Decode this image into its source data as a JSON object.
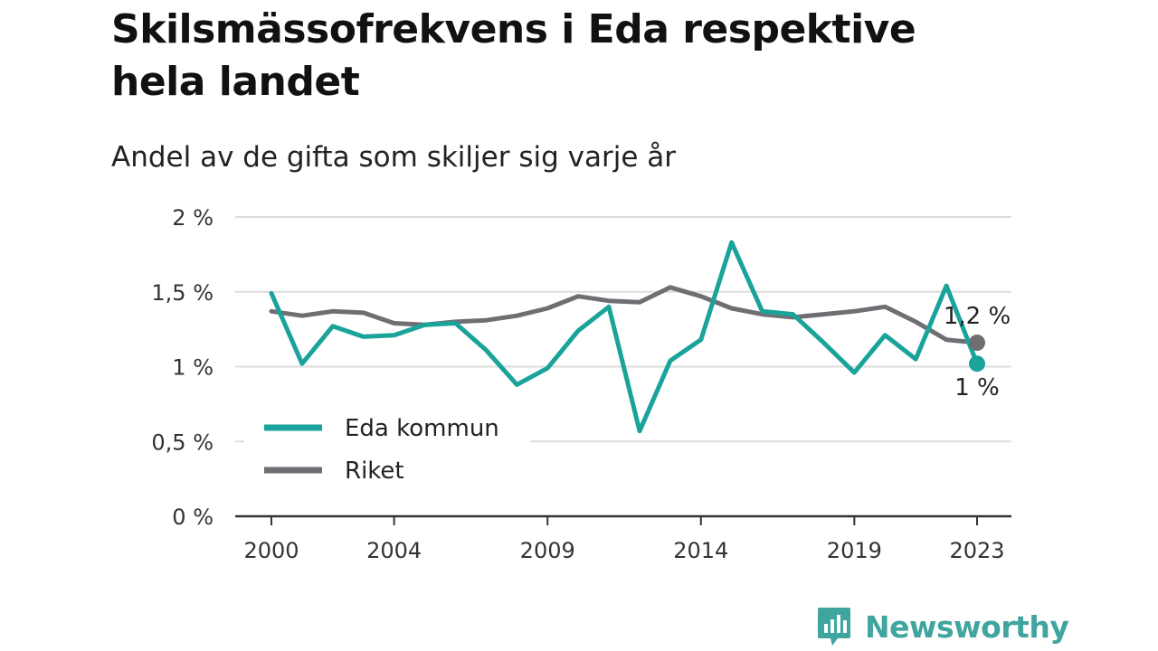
{
  "header": {
    "title": "Skilsmässofrekvens i Eda respektive hela landet",
    "subtitle": "Andel av de gifta som skiljer sig varje år"
  },
  "brand": {
    "name": "Newsworthy",
    "color": "#3fa59e"
  },
  "chart_data": {
    "type": "line",
    "title": "Skilsmässofrekvens i Eda respektive hela landet",
    "subtitle": "Andel av de gifta som skiljer sig varje år",
    "xlabel": "",
    "ylabel": "",
    "x": [
      2000,
      2001,
      2002,
      2003,
      2004,
      2005,
      2006,
      2007,
      2008,
      2009,
      2010,
      2011,
      2012,
      2013,
      2014,
      2015,
      2016,
      2017,
      2018,
      2019,
      2020,
      2021,
      2022,
      2023
    ],
    "x_ticks": [
      2000,
      2004,
      2009,
      2014,
      2019,
      2023
    ],
    "x_tick_labels": [
      "2000",
      "2004",
      "2009",
      "2014",
      "2019",
      "2023"
    ],
    "ylim": [
      0,
      2
    ],
    "y_ticks": [
      0,
      0.5,
      1,
      1.5,
      2
    ],
    "y_tick_labels": [
      "0 %",
      "0,5 %",
      "1 %",
      "1,5 %",
      "2 %"
    ],
    "grid": true,
    "legend_position": "bottom-left",
    "series": [
      {
        "name": "Eda kommun",
        "color": "#1aa39a",
        "values": [
          1.49,
          1.02,
          1.27,
          1.2,
          1.21,
          1.28,
          1.29,
          1.11,
          0.88,
          0.99,
          1.24,
          1.4,
          0.57,
          1.04,
          1.18,
          1.83,
          1.37,
          1.35,
          1.16,
          0.96,
          1.21,
          1.05,
          1.54,
          1.02
        ],
        "end_label": "1 %"
      },
      {
        "name": "Riket",
        "color": "#6f6e73",
        "values": [
          1.37,
          1.34,
          1.37,
          1.36,
          1.29,
          1.28,
          1.3,
          1.31,
          1.34,
          1.39,
          1.47,
          1.44,
          1.43,
          1.53,
          1.47,
          1.39,
          1.35,
          1.33,
          1.35,
          1.37,
          1.4,
          1.3,
          1.18,
          1.16
        ],
        "end_label": "1,2 %"
      }
    ]
  }
}
